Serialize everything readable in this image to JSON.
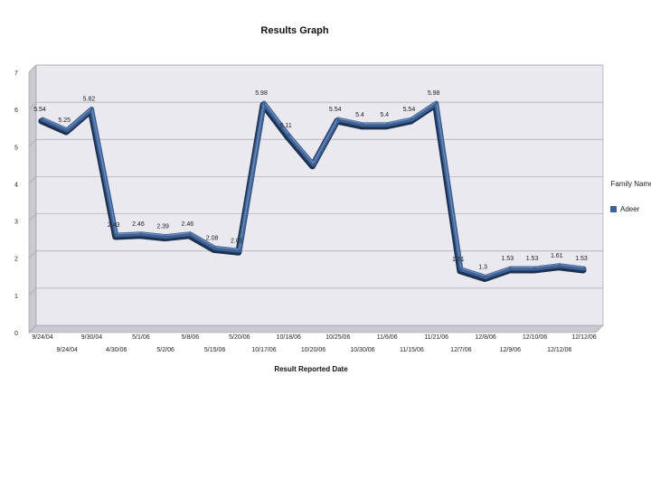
{
  "chart_data": {
    "type": "line",
    "title": "Results Graph",
    "xlabel": "Result Reported Date",
    "ylabel": "",
    "ylim": [
      0,
      7
    ],
    "yticks": [
      "0",
      "1",
      "2",
      "3",
      "4",
      "5",
      "6",
      "7"
    ],
    "grid": true,
    "legend_title": "Family Name",
    "legend_position": "right",
    "series": [
      {
        "name": "Adeer",
        "color": "#3e6296",
        "values": [
          5.54,
          5.25,
          5.82,
          2.43,
          2.46,
          2.39,
          2.46,
          2.08,
          2.01,
          5.98,
          5.11,
          4.33,
          5.54,
          5.4,
          5.4,
          5.54,
          5.98,
          1.51,
          1.3,
          1.53,
          1.53,
          1.61,
          1.53
        ]
      }
    ],
    "data_labels": [
      "5.54",
      "5.25",
      "5.82",
      "2.43",
      "2.46",
      "2.39",
      "2.46",
      "2.08",
      "2.01",
      "5.98",
      "5.11",
      "",
      "5.54",
      "5.4",
      "5.4",
      "5.54",
      "5.98",
      "1.51",
      "1.3",
      "1.53",
      "1.53",
      "1.61",
      "1.53"
    ],
    "categories": [
      "9/24/04",
      "9/24/04",
      "9/30/04",
      "4/30/06",
      "5/1/06",
      "5/2/06",
      "5/8/06",
      "5/15/06",
      "5/20/06",
      "10/17/06",
      "10/18/06",
      "10/20/06",
      "10/25/06",
      "10/30/06",
      "11/6/06",
      "11/15/06",
      "11/21/06",
      "12/7/06",
      "12/8/06",
      "12/9/06",
      "12/10/06",
      "12/12/06",
      "12/12/06"
    ]
  }
}
